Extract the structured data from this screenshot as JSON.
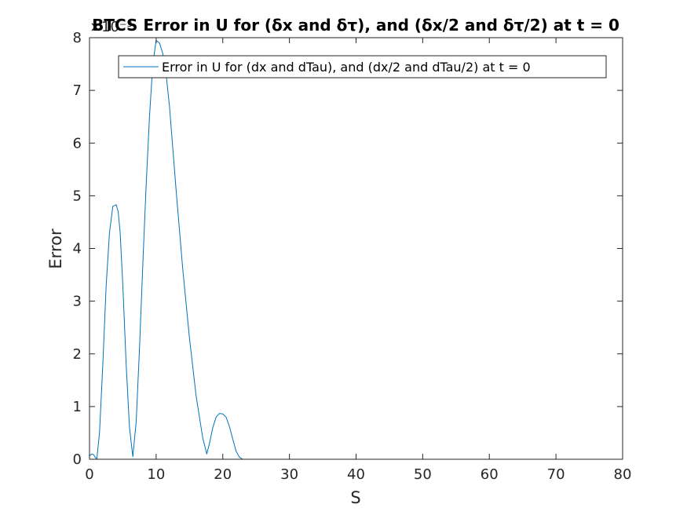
{
  "chart_data": {
    "type": "line",
    "title": "BTCS Error in U for (δx and δτ), and (δx/2 and δτ/2) at t = 0",
    "xlabel": "S",
    "ylabel": "Error",
    "y_exponent_label": "×10⁻³",
    "xlim": [
      0,
      80
    ],
    "ylim": [
      0,
      0.008
    ],
    "x_ticks": [
      0,
      10,
      20,
      30,
      40,
      50,
      60,
      70,
      80
    ],
    "x_tick_labels": [
      "0",
      "10",
      "20",
      "30",
      "40",
      "50",
      "60",
      "70",
      "80"
    ],
    "y_ticks": [
      0,
      0.001,
      0.002,
      0.003,
      0.004,
      0.005,
      0.006,
      0.007,
      0.008
    ],
    "y_tick_labels": [
      "0",
      "1",
      "2",
      "3",
      "4",
      "5",
      "6",
      "7",
      "8"
    ],
    "grid": false,
    "legend_position": "top-right",
    "series": [
      {
        "name": "Error in U for (dx and dTau), and (dx/2 and dTau/2) at t = 0",
        "color": "#0072BD",
        "x": [
          0,
          0.3,
          0.6,
          0.9,
          1.1,
          1.5,
          2.0,
          2.5,
          3.0,
          3.5,
          4.0,
          4.3,
          4.6,
          5.0,
          5.5,
          6.0,
          6.5,
          7.0,
          7.5,
          8.0,
          8.5,
          9.0,
          9.5,
          10.0,
          10.5,
          11.0,
          11.5,
          12.0,
          12.5,
          13.0,
          14.0,
          15.0,
          16.0,
          17.0,
          17.6,
          18.0,
          18.5,
          19.0,
          19.5,
          20.0,
          20.5,
          21.0,
          21.5,
          22.0,
          22.5,
          23.0,
          25.0,
          30.0,
          40.0,
          50.0,
          60.0,
          70.0,
          74.0
        ],
        "y": [
          6e-05,
          0.0001,
          9e-05,
          3e-05,
          1e-05,
          0.0005,
          0.0018,
          0.0033,
          0.0043,
          0.0048,
          0.00483,
          0.0047,
          0.0043,
          0.0033,
          0.0018,
          0.0006,
          5e-05,
          0.0007,
          0.0021,
          0.0037,
          0.0052,
          0.0065,
          0.0075,
          0.00795,
          0.0079,
          0.0077,
          0.0073,
          0.0067,
          0.0059,
          0.0051,
          0.0036,
          0.0023,
          0.0012,
          0.0004,
          0.0001,
          0.0003,
          0.0006,
          0.0008,
          0.00087,
          0.00086,
          0.0008,
          0.00062,
          0.00038,
          0.00015,
          4e-05,
          0.0,
          0.0,
          0.0,
          0.0,
          0.0,
          0.0,
          0.0,
          0.0
        ]
      }
    ]
  }
}
